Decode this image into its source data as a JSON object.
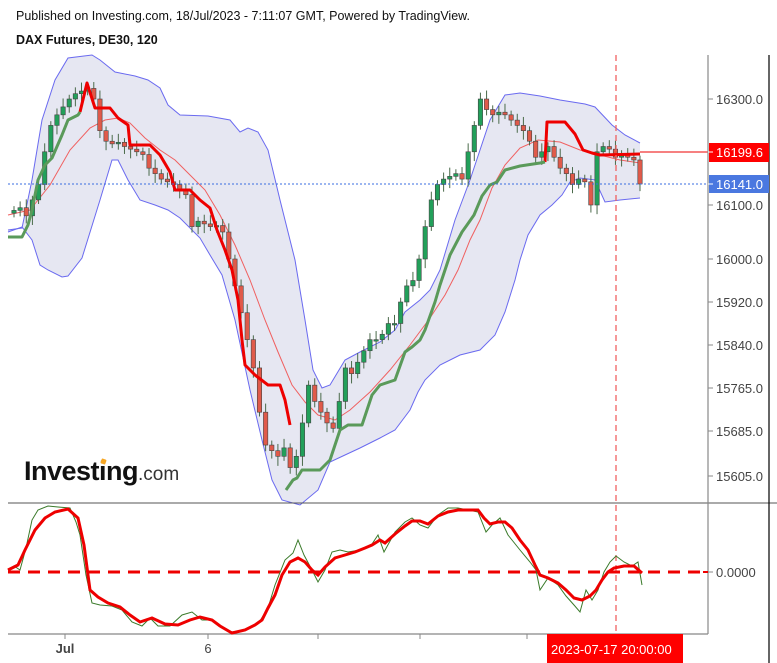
{
  "header": {
    "published": "Published on Investing.com, 18/Jul/2023 - 7:11:07 GMT, Powered by TradingView.",
    "symbol": "DAX Futures, DE30, 120"
  },
  "logo": {
    "main": "Investing",
    "suffix": ".com"
  },
  "colors": {
    "bull": "#22a05a",
    "bear": "#e05a4a",
    "band": "#6a6af0",
    "band_fill": "#e3e4f1",
    "basis": "#f06060",
    "stop_red": "#ee0000",
    "stop_green": "#5a9a5a",
    "last_price_tag": "#ff0000",
    "current_price_tag": "#4a78e0",
    "cursor_tag": "#ff0000"
  },
  "chart_data": [
    {
      "type": "candlestick",
      "title": "DAX Futures, DE30, 120",
      "xlabel": "",
      "ylabel": "",
      "x_ticks": [
        {
          "label": "Jul",
          "x": 65
        },
        {
          "label": "6",
          "x": 208
        },
        {
          "label": "",
          "x": 318
        },
        {
          "label": "",
          "x": 420
        },
        {
          "label": "",
          "x": 527
        }
      ],
      "y_ticks": [
        16300.0,
        16100.0,
        16000.0,
        15920.0,
        15840.0,
        15765.0,
        15685.0,
        15605.0
      ],
      "y_tick_labels": [
        "16300.0",
        "16100.0",
        "16000.0",
        "15920.0",
        "15840.0",
        "15765.0",
        "15685.0",
        "15605.0"
      ],
      "ylim": [
        15565,
        16380
      ],
      "price_tags": [
        {
          "label": "16199.6",
          "value": 16199.6,
          "role": "indicator-level"
        },
        {
          "label": "16141.0",
          "value": 16141.0,
          "role": "last-price"
        }
      ],
      "cursor": {
        "label": "2023-07-17 20:00:00",
        "x": 616
      },
      "grid": false,
      "indicators": [
        "Bollinger Bands",
        "Basis MA",
        "Trailing stop (red/green)"
      ],
      "approx_series": {
        "close": [
          16090,
          16095,
          16080,
          16110,
          16140,
          16200,
          16250,
          16270,
          16285,
          16300,
          16310,
          16315,
          16320,
          16300,
          16240,
          16220,
          16215,
          16218,
          16210,
          16205,
          16200,
          16195,
          16170,
          16160,
          16150,
          16145,
          16140,
          16130,
          16120,
          16060,
          16070,
          16065,
          16060,
          16062,
          16050,
          16000,
          15950,
          15900,
          15850,
          15800,
          15720,
          15660,
          15650,
          15640,
          15655,
          15620,
          15640,
          15700,
          15770,
          15740,
          15720,
          15700,
          15690,
          15740,
          15800,
          15790,
          15810,
          15830,
          15850,
          15850,
          15860,
          15880,
          15880,
          15920,
          15950,
          15960,
          16000,
          16060,
          16110,
          16140,
          16150,
          16155,
          16160,
          16150,
          16200,
          16250,
          16300,
          16280,
          16270,
          16275,
          16270,
          16260,
          16250,
          16240,
          16220,
          16190,
          16200,
          16210,
          16190,
          16170,
          16160,
          16140,
          16150,
          16145,
          16100,
          16200,
          16210,
          16205,
          16190,
          16195,
          16190,
          16185,
          16141
        ]
      }
    },
    {
      "type": "line",
      "title": "Oscillator",
      "y_ticks": [
        0.0
      ],
      "y_tick_labels": [
        "0.0000"
      ],
      "series": [
        {
          "name": "signal (thick red)",
          "approx_shape": "peaks near Jul start, troughs around 6th, rises to high mid-range, falls below zero near 2023-07-17, ends slightly above zero"
        },
        {
          "name": "fast (thin green)",
          "approx_shape": "leads signal line"
        }
      ],
      "zero_line": "dashed red"
    }
  ]
}
